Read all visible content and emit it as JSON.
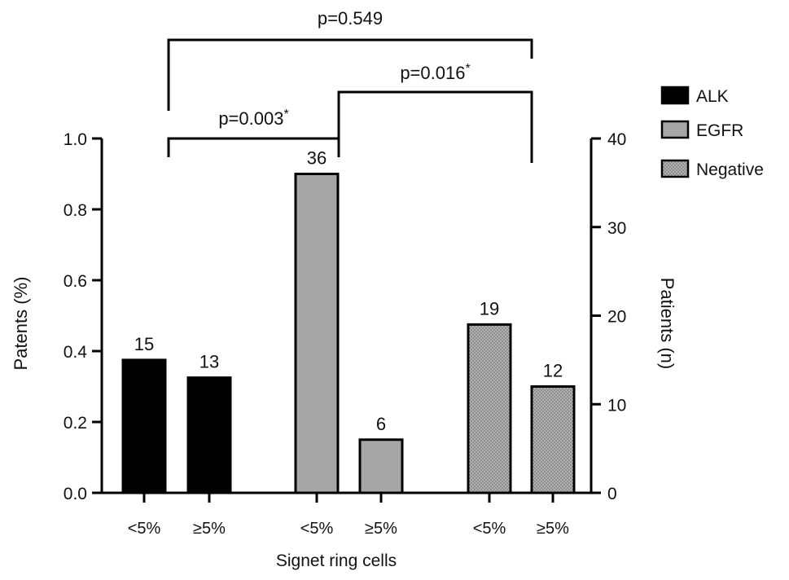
{
  "chart_data": {
    "type": "bar",
    "xlabel": "Signet ring cells",
    "ylabel_left": "Patents (%)",
    "ylabel_right": "Patients (n)",
    "ylim_left": [
      0,
      1.0
    ],
    "ylim_right": [
      0,
      40
    ],
    "yticks_left": [
      "0.0",
      "0.2",
      "0.4",
      "0.6",
      "0.8",
      "1.0"
    ],
    "yticks_right": [
      "0",
      "10",
      "20",
      "30",
      "40"
    ],
    "grid": false,
    "legend_position": "top-right",
    "series": [
      {
        "name": "ALK",
        "fill": "#000000",
        "pattern": "solid",
        "bars": [
          {
            "category": "<5%",
            "value": 0.375,
            "count": "15"
          },
          {
            "category": "≥5%",
            "value": 0.325,
            "count": "13"
          }
        ]
      },
      {
        "name": "EGFR",
        "fill": "#a6a6a6",
        "pattern": "solid",
        "bars": [
          {
            "category": "<5%",
            "value": 0.9,
            "count": "36"
          },
          {
            "category": "≥5%",
            "value": 0.15,
            "count": "6"
          }
        ]
      },
      {
        "name": "Negative",
        "fill": "#8f8f8f",
        "pattern": "dotted",
        "bars": [
          {
            "category": "<5%",
            "value": 0.475,
            "count": "19"
          },
          {
            "category": "≥5%",
            "value": 0.3,
            "count": "12"
          }
        ]
      }
    ],
    "comparisons": [
      {
        "label": "p=0.549",
        "from_group": 0,
        "to_group": 2
      },
      {
        "label": "p=0.016",
        "significance_mark": "*",
        "from_group": 1,
        "to_group": 2
      },
      {
        "label": "p=0.003",
        "significance_mark": "*",
        "from_group": 0,
        "to_group": 1
      }
    ]
  }
}
